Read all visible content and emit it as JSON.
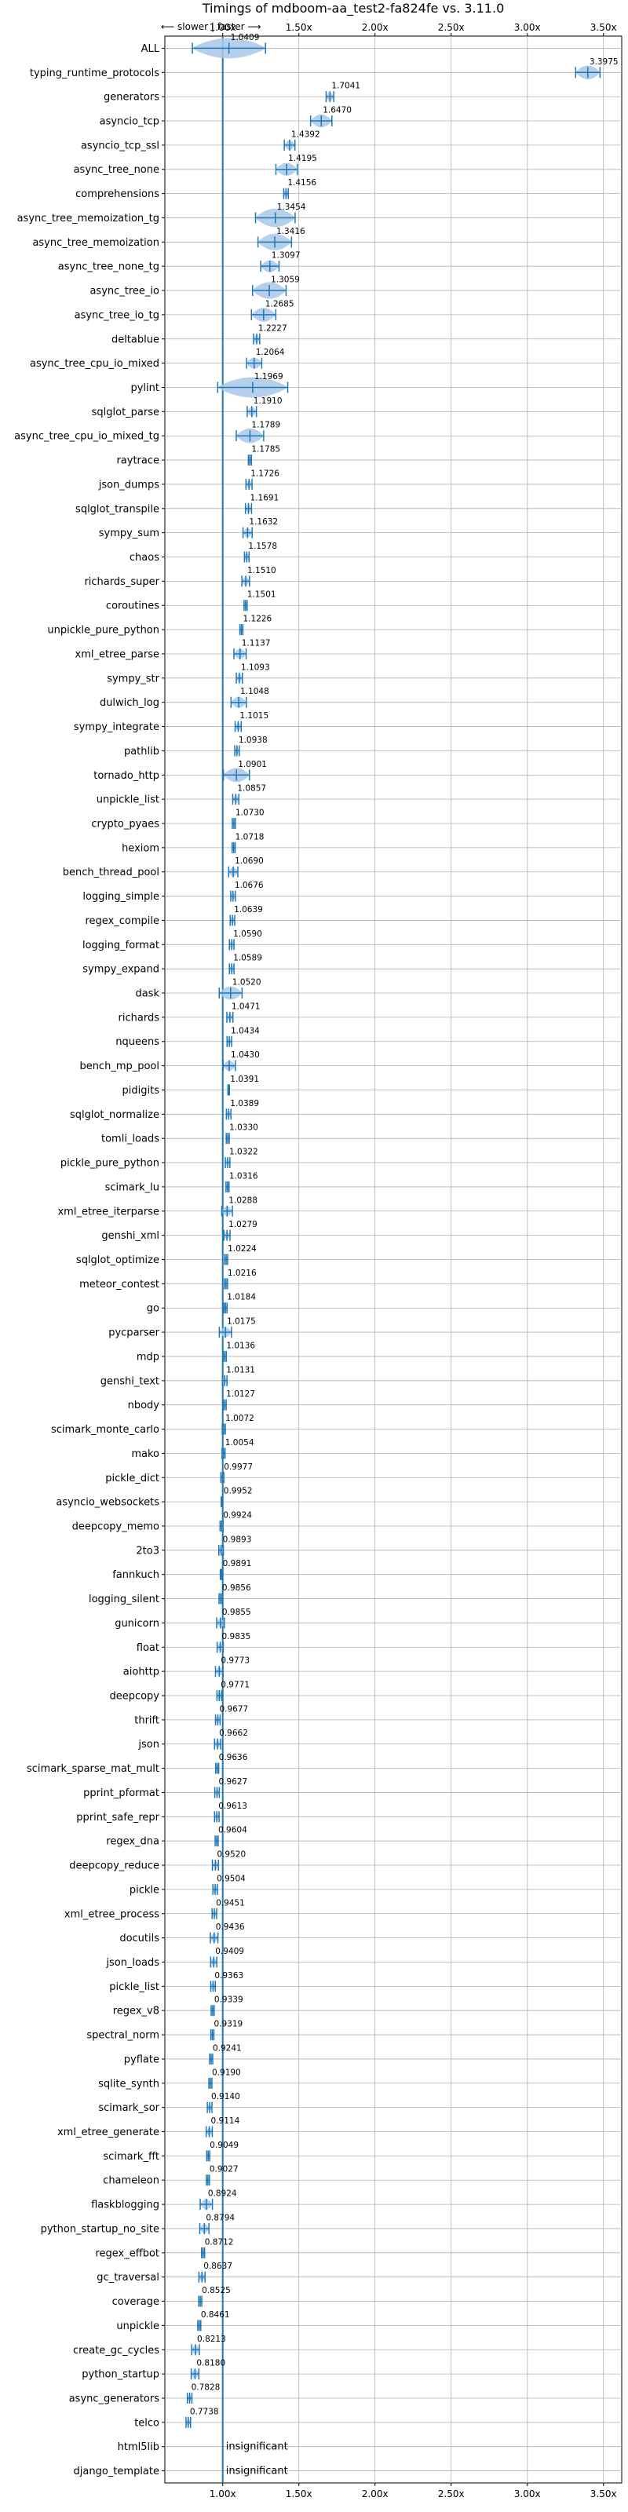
{
  "chart_data": {
    "type": "violin",
    "title": "Timings of mdboom-aa_test2-fa824fe vs. 3.11.0",
    "direction_label": "⟵ slower | faster ⟶",
    "x_ticks": [
      "1.00x",
      "1.50x",
      "2.00x",
      "2.50x",
      "3.00x",
      "3.50x"
    ],
    "x_tick_values": [
      1.0,
      1.5,
      2.0,
      2.5,
      3.0,
      3.5
    ],
    "xlim": [
      0.62,
      3.62
    ],
    "grid": true,
    "reference_line": 1.0,
    "colors": {
      "violin": "#a9c8e8",
      "line": "#1f77b4",
      "median": "#d62728",
      "ref": "#1f77b4"
    },
    "benchmarks": [
      {
        "name": "ALL",
        "value": 1.0409,
        "label": "1.0409",
        "spread": 0.48
      },
      {
        "name": "typing_runtime_protocols",
        "value": 3.3975,
        "label": "3.3975",
        "spread": 0.16
      },
      {
        "name": "generators",
        "value": 1.7041,
        "label": "1.7041",
        "spread": 0.05
      },
      {
        "name": "asyncio_tcp",
        "value": 1.647,
        "label": "1.6470",
        "spread": 0.14
      },
      {
        "name": "asyncio_tcp_ssl",
        "value": 1.4392,
        "label": "1.4392",
        "spread": 0.07
      },
      {
        "name": "async_tree_none",
        "value": 1.4195,
        "label": "1.4195",
        "spread": 0.14
      },
      {
        "name": "comprehensions",
        "value": 1.4156,
        "label": "1.4156",
        "spread": 0.03
      },
      {
        "name": "async_tree_memoization_tg",
        "value": 1.3454,
        "label": "1.3454",
        "spread": 0.26
      },
      {
        "name": "async_tree_memoization",
        "value": 1.3416,
        "label": "1.3416",
        "spread": 0.22
      },
      {
        "name": "async_tree_none_tg",
        "value": 1.3097,
        "label": "1.3097",
        "spread": 0.12
      },
      {
        "name": "async_tree_io",
        "value": 1.3059,
        "label": "1.3059",
        "spread": 0.22
      },
      {
        "name": "async_tree_io_tg",
        "value": 1.2685,
        "label": "1.2685",
        "spread": 0.16
      },
      {
        "name": "deltablue",
        "value": 1.2227,
        "label": "1.2227",
        "spread": 0.04
      },
      {
        "name": "async_tree_cpu_io_mixed",
        "value": 1.2064,
        "label": "1.2064",
        "spread": 0.1
      },
      {
        "name": "pylint",
        "value": 1.1969,
        "label": "1.1969",
        "spread": 0.46
      },
      {
        "name": "sqlglot_parse",
        "value": 1.191,
        "label": "1.1910",
        "spread": 0.06
      },
      {
        "name": "async_tree_cpu_io_mixed_tg",
        "value": 1.1789,
        "label": "1.1789",
        "spread": 0.18
      },
      {
        "name": "raytrace",
        "value": 1.1785,
        "label": "1.1785",
        "spread": 0.02
      },
      {
        "name": "json_dumps",
        "value": 1.1726,
        "label": "1.1726",
        "spread": 0.04
      },
      {
        "name": "sqlglot_transpile",
        "value": 1.1691,
        "label": "1.1691",
        "spread": 0.04
      },
      {
        "name": "sympy_sum",
        "value": 1.1632,
        "label": "1.1632",
        "spread": 0.06
      },
      {
        "name": "chaos",
        "value": 1.1578,
        "label": "1.1578",
        "spread": 0.03
      },
      {
        "name": "richards_super",
        "value": 1.151,
        "label": "1.1510",
        "spread": 0.05
      },
      {
        "name": "coroutines",
        "value": 1.1501,
        "label": "1.1501",
        "spread": 0.02
      },
      {
        "name": "unpickle_pure_python",
        "value": 1.1226,
        "label": "1.1226",
        "spread": 0.02
      },
      {
        "name": "xml_etree_parse",
        "value": 1.1137,
        "label": "1.1137",
        "spread": 0.08
      },
      {
        "name": "sympy_str",
        "value": 1.1093,
        "label": "1.1093",
        "spread": 0.04
      },
      {
        "name": "dulwich_log",
        "value": 1.1048,
        "label": "1.1048",
        "spread": 0.1
      },
      {
        "name": "sympy_integrate",
        "value": 1.1015,
        "label": "1.1015",
        "spread": 0.04
      },
      {
        "name": "pathlib",
        "value": 1.0938,
        "label": "1.0938",
        "spread": 0.03
      },
      {
        "name": "tornado_http",
        "value": 1.0901,
        "label": "1.0901",
        "spread": 0.17
      },
      {
        "name": "unpickle_list",
        "value": 1.0857,
        "label": "1.0857",
        "spread": 0.04
      },
      {
        "name": "crypto_pyaes",
        "value": 1.073,
        "label": "1.0730",
        "spread": 0.02
      },
      {
        "name": "hexiom",
        "value": 1.0718,
        "label": "1.0718",
        "spread": 0.02
      },
      {
        "name": "bench_thread_pool",
        "value": 1.069,
        "label": "1.0690",
        "spread": 0.06
      },
      {
        "name": "logging_simple",
        "value": 1.0676,
        "label": "1.0676",
        "spread": 0.03
      },
      {
        "name": "regex_compile",
        "value": 1.0639,
        "label": "1.0639",
        "spread": 0.03
      },
      {
        "name": "logging_format",
        "value": 1.059,
        "label": "1.0590",
        "spread": 0.03
      },
      {
        "name": "sympy_expand",
        "value": 1.0589,
        "label": "1.0589",
        "spread": 0.03
      },
      {
        "name": "dask",
        "value": 1.052,
        "label": "1.0520",
        "spread": 0.15
      },
      {
        "name": "richards",
        "value": 1.0471,
        "label": "1.0471",
        "spread": 0.04
      },
      {
        "name": "nqueens",
        "value": 1.0434,
        "label": "1.0434",
        "spread": 0.03
      },
      {
        "name": "bench_mp_pool",
        "value": 1.043,
        "label": "1.0430",
        "spread": 0.08
      },
      {
        "name": "pidigits",
        "value": 1.0391,
        "label": "1.0391",
        "spread": 0.01
      },
      {
        "name": "sqlglot_normalize",
        "value": 1.0389,
        "label": "1.0389",
        "spread": 0.03
      },
      {
        "name": "tomli_loads",
        "value": 1.033,
        "label": "1.0330",
        "spread": 0.02
      },
      {
        "name": "pickle_pure_python",
        "value": 1.0322,
        "label": "1.0322",
        "spread": 0.03
      },
      {
        "name": "scimark_lu",
        "value": 1.0316,
        "label": "1.0316",
        "spread": 0.02
      },
      {
        "name": "xml_etree_iterparse",
        "value": 1.0288,
        "label": "1.0288",
        "spread": 0.07
      },
      {
        "name": "genshi_xml",
        "value": 1.0279,
        "label": "1.0279",
        "spread": 0.04
      },
      {
        "name": "sqlglot_optimize",
        "value": 1.0224,
        "label": "1.0224",
        "spread": 0.02
      },
      {
        "name": "meteor_contest",
        "value": 1.0216,
        "label": "1.0216",
        "spread": 0.02
      },
      {
        "name": "go",
        "value": 1.0184,
        "label": "1.0184",
        "spread": 0.02
      },
      {
        "name": "pycparser",
        "value": 1.0175,
        "label": "1.0175",
        "spread": 0.08
      },
      {
        "name": "mdp",
        "value": 1.0136,
        "label": "1.0136",
        "spread": 0.02
      },
      {
        "name": "genshi_text",
        "value": 1.0131,
        "label": "1.0131",
        "spread": 0.03
      },
      {
        "name": "nbody",
        "value": 1.0127,
        "label": "1.0127",
        "spread": 0.02
      },
      {
        "name": "scimark_monte_carlo",
        "value": 1.0072,
        "label": "1.0072",
        "spread": 0.02
      },
      {
        "name": "mako",
        "value": 1.0054,
        "label": "1.0054",
        "spread": 0.02
      },
      {
        "name": "pickle_dict",
        "value": 0.9977,
        "label": "0.9977",
        "spread": 0.02
      },
      {
        "name": "asyncio_websockets",
        "value": 0.9952,
        "label": "0.9952",
        "spread": 0.01
      },
      {
        "name": "deepcopy_memo",
        "value": 0.9924,
        "label": "0.9924",
        "spread": 0.02
      },
      {
        "name": "2to3",
        "value": 0.9893,
        "label": "0.9893",
        "spread": 0.03
      },
      {
        "name": "fannkuch",
        "value": 0.9891,
        "label": "0.9891",
        "spread": 0.01
      },
      {
        "name": "logging_silent",
        "value": 0.9856,
        "label": "0.9856",
        "spread": 0.02
      },
      {
        "name": "gunicorn",
        "value": 0.9855,
        "label": "0.9855",
        "spread": 0.05
      },
      {
        "name": "float",
        "value": 0.9835,
        "label": "0.9835",
        "spread": 0.04
      },
      {
        "name": "aiohttp",
        "value": 0.9773,
        "label": "0.9773",
        "spread": 0.05
      },
      {
        "name": "deepcopy",
        "value": 0.9771,
        "label": "0.9771",
        "spread": 0.03
      },
      {
        "name": "thrift",
        "value": 0.9677,
        "label": "0.9677",
        "spread": 0.03
      },
      {
        "name": "json",
        "value": 0.9662,
        "label": "0.9662",
        "spread": 0.04
      },
      {
        "name": "scimark_sparse_mat_mult",
        "value": 0.9636,
        "label": "0.9636",
        "spread": 0.02
      },
      {
        "name": "pprint_pformat",
        "value": 0.9627,
        "label": "0.9627",
        "spread": 0.03
      },
      {
        "name": "pprint_safe_repr",
        "value": 0.9613,
        "label": "0.9613",
        "spread": 0.03
      },
      {
        "name": "regex_dna",
        "value": 0.9604,
        "label": "0.9604",
        "spread": 0.02
      },
      {
        "name": "deepcopy_reduce",
        "value": 0.952,
        "label": "0.9520",
        "spread": 0.04
      },
      {
        "name": "pickle",
        "value": 0.9504,
        "label": "0.9504",
        "spread": 0.03
      },
      {
        "name": "xml_etree_process",
        "value": 0.9451,
        "label": "0.9451",
        "spread": 0.03
      },
      {
        "name": "docutils",
        "value": 0.9436,
        "label": "0.9436",
        "spread": 0.05
      },
      {
        "name": "json_loads",
        "value": 0.9409,
        "label": "0.9409",
        "spread": 0.04
      },
      {
        "name": "pickle_list",
        "value": 0.9363,
        "label": "0.9363",
        "spread": 0.03
      },
      {
        "name": "regex_v8",
        "value": 0.9339,
        "label": "0.9339",
        "spread": 0.02
      },
      {
        "name": "spectral_norm",
        "value": 0.9319,
        "label": "0.9319",
        "spread": 0.02
      },
      {
        "name": "pyflate",
        "value": 0.9241,
        "label": "0.9241",
        "spread": 0.02
      },
      {
        "name": "sqlite_synth",
        "value": 0.919,
        "label": "0.9190",
        "spread": 0.02
      },
      {
        "name": "scimark_sor",
        "value": 0.914,
        "label": "0.9140",
        "spread": 0.03
      },
      {
        "name": "xml_etree_generate",
        "value": 0.9114,
        "label": "0.9114",
        "spread": 0.04
      },
      {
        "name": "scimark_fft",
        "value": 0.9049,
        "label": "0.9049",
        "spread": 0.02
      },
      {
        "name": "chameleon",
        "value": 0.9027,
        "label": "0.9027",
        "spread": 0.02
      },
      {
        "name": "flaskblogging",
        "value": 0.8924,
        "label": "0.8924",
        "spread": 0.08
      },
      {
        "name": "python_startup_no_site",
        "value": 0.8794,
        "label": "0.8794",
        "spread": 0.06
      },
      {
        "name": "regex_effbot",
        "value": 0.8712,
        "label": "0.8712",
        "spread": 0.02
      },
      {
        "name": "gc_traversal",
        "value": 0.8637,
        "label": "0.8637",
        "spread": 0.04
      },
      {
        "name": "coverage",
        "value": 0.8525,
        "label": "0.8525",
        "spread": 0.02
      },
      {
        "name": "unpickle",
        "value": 0.8461,
        "label": "0.8461",
        "spread": 0.02
      },
      {
        "name": "create_gc_cycles",
        "value": 0.8213,
        "label": "0.8213",
        "spread": 0.05
      },
      {
        "name": "python_startup",
        "value": 0.818,
        "label": "0.8180",
        "spread": 0.05
      },
      {
        "name": "async_generators",
        "value": 0.7828,
        "label": "0.7828",
        "spread": 0.03
      },
      {
        "name": "telco",
        "value": 0.7738,
        "label": "0.7738",
        "spread": 0.03
      },
      {
        "name": "html5lib",
        "value": null,
        "label": "insignificant",
        "spread": 0
      },
      {
        "name": "django_template",
        "value": null,
        "label": "insignificant",
        "spread": 0
      }
    ]
  }
}
